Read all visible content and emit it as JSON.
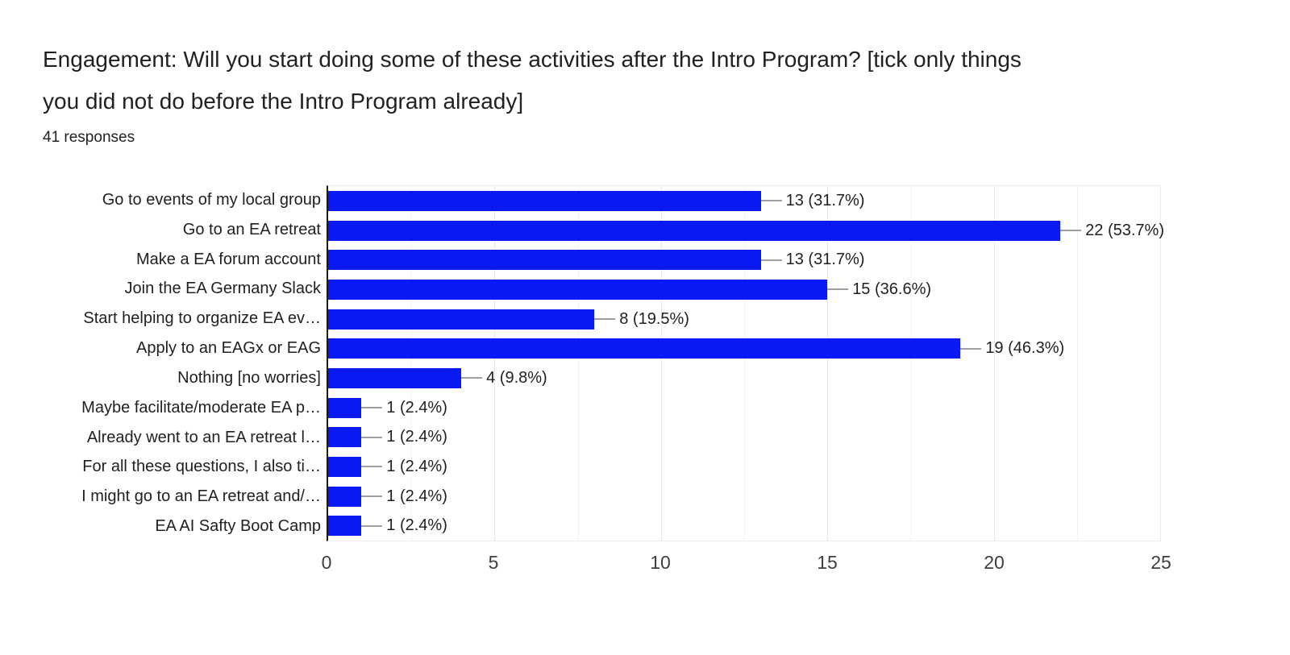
{
  "header": {
    "title_lines": [
      "Engagement: Will you start doing some of these activities after the Intro Program? [tick only things",
      "you did not do before the Intro Program already]"
    ],
    "title_full": "Engagement: Will you start doing some of these activities after the Intro Program? [tick only things you did not do before the Intro Program already]",
    "responses": "41 responses"
  },
  "chart_data": {
    "type": "bar",
    "orientation": "horizontal",
    "total_responses": 41,
    "categories": [
      "Go to events of my local group",
      "Go to an EA retreat",
      "Make a EA forum account",
      "Join the EA Germany Slack",
      "Start helping to organize EA ev…",
      "Apply to an EAGx or EAG",
      "Nothing [no worries]",
      "Maybe facilitate/moderate EA p…",
      "Already went to an EA retreat l…",
      "For all these questions, I also ti…",
      "I might go to an EA retreat and/…",
      "EA AI Safty Boot Camp"
    ],
    "values": [
      13,
      22,
      13,
      15,
      8,
      19,
      4,
      1,
      1,
      1,
      1,
      1
    ],
    "value_labels": [
      "13 (31.7%)",
      "22 (53.7%)",
      "13 (31.7%)",
      "15 (36.6%)",
      "8 (19.5%)",
      "19 (46.3%)",
      "4 (9.8%)",
      "1 (2.4%)",
      "1 (2.4%)",
      "1 (2.4%)",
      "1 (2.4%)",
      "1 (2.4%)"
    ],
    "xlim": [
      0,
      25
    ],
    "x_major_ticks": [
      0,
      5,
      10,
      15,
      20,
      25
    ],
    "x_minor_ticks": [
      2.5,
      7.5,
      12.5,
      17.5,
      22.5
    ],
    "grid": "vertical",
    "legend": "none",
    "bar_color": "#0b19f4",
    "leader_line_color": "#9e9e9e",
    "axis_line_color": "#1a1a1a",
    "tick_label_color": "#3c4043"
  }
}
